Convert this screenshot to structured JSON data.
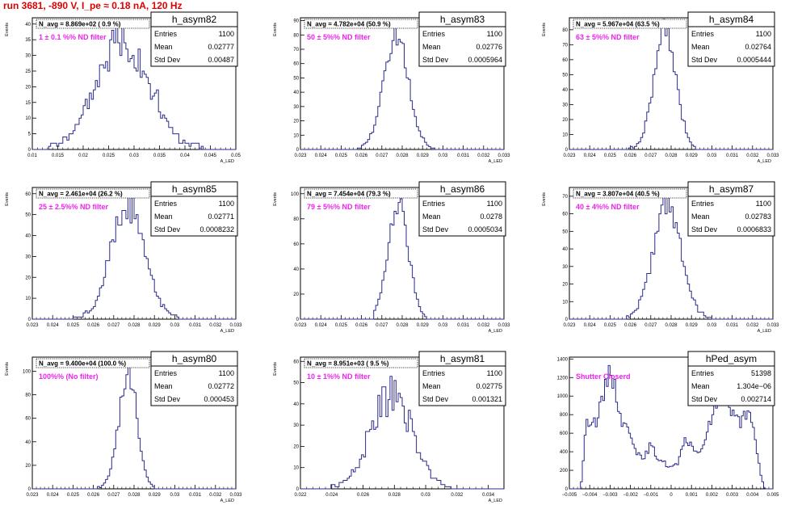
{
  "title": "run 3681,  -890 V, I_pe ≈ 0.18 nA, 120 Hz",
  "colors": {
    "hist": "#2b2b8c",
    "title": "#e00000",
    "filter": "#ee22ee"
  },
  "chart_data": [
    {
      "type": "histogram",
      "name": "h_asym82",
      "ylabel": "Events",
      "xlabel": "A_LED",
      "navg": "N_avg = 8.869e+02 ( 0.9 %)",
      "filter": "1 ± 0.1 %% ND filter",
      "entries": "1100",
      "mean": "0.02777",
      "std_dev": "0.00487",
      "xlim": [
        0.01,
        0.05
      ],
      "ylim": [
        0,
        42
      ],
      "xticks": [
        0.01,
        0.015,
        0.02,
        0.025,
        0.03,
        0.035,
        0.04,
        0.045,
        0.05
      ],
      "xtick_labels": [
        "0.01",
        "0.015",
        "0.02",
        "0.025",
        "0.03",
        "0.035",
        "0.04",
        "0.045",
        "0.05"
      ],
      "yticks": [
        0,
        5,
        10,
        15,
        20,
        25,
        30,
        35,
        40
      ],
      "ytick_labels": [
        "0",
        "5",
        "10",
        "15",
        "20",
        "25",
        "30",
        "35",
        "40"
      ],
      "bins": {
        "lo": 0.0127,
        "hi": 0.0444,
        "peak": 0.0278,
        "sigma": 0.005,
        "amp": 36,
        "noise": 0.25
      }
    },
    {
      "type": "histogram",
      "name": "h_asym83",
      "ylabel": "Events",
      "xlabel": "A_LED",
      "navg": "N_avg = 4.782e+04 (50.9 %)",
      "filter": "50 ± 5%% ND filter",
      "entries": "1100",
      "mean": "0.02776",
      "std_dev": "0.0005964",
      "xlim": [
        0.023,
        0.033
      ],
      "ylim": [
        0,
        92
      ],
      "xticks": [
        0.023,
        0.024,
        0.025,
        0.026,
        0.027,
        0.028,
        0.029,
        0.03,
        0.031,
        0.032,
        0.033
      ],
      "xtick_labels": [
        "0.023",
        "0.024",
        "0.025",
        "0.026",
        "0.027",
        "0.028",
        "0.029",
        "0.03",
        "0.031",
        "0.032",
        "0.033"
      ],
      "yticks": [
        0,
        10,
        20,
        30,
        40,
        50,
        60,
        70,
        80,
        90
      ],
      "ytick_labels": [
        "0",
        "10",
        "20",
        "30",
        "40",
        "50",
        "60",
        "70",
        "80",
        "90"
      ],
      "bins": {
        "lo": 0.0258,
        "hi": 0.0296,
        "peak": 0.0277,
        "sigma": 0.0006,
        "amp": 80,
        "noise": 0.12
      }
    },
    {
      "type": "histogram",
      "name": "h_asym84",
      "ylabel": "Events",
      "xlabel": "A_LED",
      "navg": "N_avg = 5.967e+04 (63.5 %)",
      "filter": "63 ± 5%% ND filter",
      "entries": "1100",
      "mean": "0.02764",
      "std_dev": "0.0005444",
      "xlim": [
        0.023,
        0.033
      ],
      "ylim": [
        0,
        88
      ],
      "xticks": [
        0.023,
        0.024,
        0.025,
        0.026,
        0.027,
        0.028,
        0.029,
        0.03,
        0.031,
        0.032,
        0.033
      ],
      "xtick_labels": [
        "0.023",
        "0.024",
        "0.025",
        "0.026",
        "0.027",
        "0.028",
        "0.029",
        "0.03",
        "0.031",
        "0.032",
        "0.033"
      ],
      "yticks": [
        0,
        10,
        20,
        30,
        40,
        50,
        60,
        70,
        80
      ],
      "ytick_labels": [
        "0",
        "10",
        "20",
        "30",
        "40",
        "50",
        "60",
        "70",
        "80"
      ],
      "bins": {
        "lo": 0.0258,
        "hi": 0.0292,
        "peak": 0.0277,
        "sigma": 0.00054,
        "amp": 78,
        "noise": 0.12
      }
    },
    {
      "type": "histogram",
      "name": "h_asym85",
      "ylabel": "Events",
      "xlabel": "A_LED",
      "navg": "N_avg = 2.461e+04 (26.2 %)",
      "filter": "25 ± 2.5%% ND filter",
      "entries": "1100",
      "mean": "0.02771",
      "std_dev": "0.0008232",
      "xlim": [
        0.023,
        0.033
      ],
      "ylim": [
        0,
        63
      ],
      "xticks": [
        0.023,
        0.024,
        0.025,
        0.026,
        0.027,
        0.028,
        0.029,
        0.03,
        0.031,
        0.032,
        0.033
      ],
      "xtick_labels": [
        "0.023",
        "0.024",
        "0.025",
        "0.026",
        "0.027",
        "0.028",
        "0.029",
        "0.03",
        "0.031",
        "0.032",
        "0.033"
      ],
      "yticks": [
        0,
        10,
        20,
        30,
        40,
        50,
        60
      ],
      "ytick_labels": [
        "0",
        "10",
        "20",
        "30",
        "40",
        "50",
        "60"
      ],
      "bins": {
        "lo": 0.025,
        "hi": 0.0302,
        "peak": 0.0277,
        "sigma": 0.00082,
        "amp": 54,
        "noise": 0.14
      }
    },
    {
      "type": "histogram",
      "name": "h_asym86",
      "ylabel": "Events",
      "xlabel": "A_LED",
      "navg": "N_avg = 7.454e+04 (79.3 %)",
      "filter": "79 ± 5%% ND filter",
      "entries": "1100",
      "mean": "0.0278",
      "std_dev": "0.0005034",
      "xlim": [
        0.023,
        0.033
      ],
      "ylim": [
        0,
        105
      ],
      "xticks": [
        0.023,
        0.024,
        0.025,
        0.026,
        0.027,
        0.028,
        0.029,
        0.03,
        0.031,
        0.032,
        0.033
      ],
      "xtick_labels": [
        "0.023",
        "0.024",
        "0.025",
        "0.026",
        "0.027",
        "0.028",
        "0.029",
        "0.03",
        "0.031",
        "0.032",
        "0.033"
      ],
      "yticks": [
        0,
        20,
        40,
        60,
        80,
        100
      ],
      "ytick_labels": [
        "0",
        "20",
        "40",
        "60",
        "80",
        "100"
      ],
      "bins": {
        "lo": 0.0266,
        "hi": 0.0292,
        "peak": 0.0278,
        "sigma": 0.0005,
        "amp": 90,
        "noise": 0.12
      }
    },
    {
      "type": "histogram",
      "name": "h_asym87",
      "ylabel": "Events",
      "xlabel": "A_LED",
      "navg": "N_avg = 3.807e+04 (40.5 %)",
      "filter": "40 ± 4%% ND filter",
      "entries": "1100",
      "mean": "0.02783",
      "std_dev": "0.0006833",
      "xlim": [
        0.023,
        0.033
      ],
      "ylim": [
        0,
        75
      ],
      "xticks": [
        0.023,
        0.024,
        0.025,
        0.026,
        0.027,
        0.028,
        0.029,
        0.03,
        0.031,
        0.032,
        0.033
      ],
      "xtick_labels": [
        "0.023",
        "0.024",
        "0.025",
        "0.026",
        "0.027",
        "0.028",
        "0.029",
        "0.03",
        "0.031",
        "0.032",
        "0.033"
      ],
      "yticks": [
        0,
        10,
        20,
        30,
        40,
        50,
        60,
        70
      ],
      "ytick_labels": [
        "0",
        "10",
        "20",
        "30",
        "40",
        "50",
        "60",
        "70"
      ],
      "bins": {
        "lo": 0.0258,
        "hi": 0.03,
        "peak": 0.0278,
        "sigma": 0.00068,
        "amp": 64,
        "noise": 0.12
      }
    },
    {
      "type": "histogram",
      "name": "h_asym80",
      "ylabel": "Events",
      "xlabel": "A_LED",
      "navg": "N_avg = 9.400e+04 (100.0 %)",
      "filter": "100%% (No filter)",
      "entries": "1100",
      "mean": "0.02772",
      "std_dev": "0.000453",
      "xlim": [
        0.023,
        0.033
      ],
      "ylim": [
        0,
        112
      ],
      "xticks": [
        0.023,
        0.024,
        0.025,
        0.026,
        0.027,
        0.028,
        0.029,
        0.03,
        0.031,
        0.032,
        0.033
      ],
      "xtick_labels": [
        "0.023",
        "0.024",
        "0.025",
        "0.026",
        "0.027",
        "0.028",
        "0.029",
        "0.03",
        "0.031",
        "0.032",
        "0.033"
      ],
      "yticks": [
        0,
        20,
        40,
        60,
        80,
        100
      ],
      "ytick_labels": [
        "0",
        "20",
        "40",
        "60",
        "80",
        "100"
      ],
      "bins": {
        "lo": 0.0262,
        "hi": 0.029,
        "peak": 0.0277,
        "sigma": 0.00045,
        "amp": 98,
        "noise": 0.12
      }
    },
    {
      "type": "histogram",
      "name": "h_asym81",
      "ylabel": "Events",
      "xlabel": "A_LED",
      "navg": "N_avg = 8.951e+03 ( 9.5 %)",
      "filter": "10 ± 1%% ND filter",
      "entries": "1100",
      "mean": "0.02775",
      "std_dev": "0.001321",
      "xlim": [
        0.022,
        0.035
      ],
      "ylim": [
        0,
        62
      ],
      "xticks": [
        0.022,
        0.024,
        0.026,
        0.028,
        0.03,
        0.032,
        0.034
      ],
      "xtick_labels": [
        "0.022",
        "0.024",
        "0.026",
        "0.028",
        "0.03",
        "0.032",
        "0.034"
      ],
      "yticks": [
        0,
        10,
        20,
        30,
        40,
        50,
        60
      ],
      "ytick_labels": [
        "0",
        "10",
        "20",
        "30",
        "40",
        "50",
        "60"
      ],
      "bins": {
        "lo": 0.0238,
        "hi": 0.0318,
        "peak": 0.0278,
        "sigma": 0.0013,
        "amp": 44,
        "noise": 0.22
      }
    },
    {
      "type": "histogram",
      "name": "hPed_asym",
      "ylabel": "",
      "xlabel": "",
      "navg": "",
      "filter": "Shutter Closerd",
      "entries": "51398",
      "mean": "1.304e−06",
      "std_dev": "0.002714",
      "xlim": [
        -0.005,
        0.005
      ],
      "ylim": [
        0,
        1420
      ],
      "xticks": [
        -0.005,
        -0.004,
        -0.003,
        -0.002,
        -0.001,
        0,
        0.001,
        0.002,
        0.003,
        0.004,
        0.005
      ],
      "xtick_labels": [
        "−0.005",
        "−0.004",
        "−0.003",
        "−0.002",
        "−0.001",
        "0",
        "0.001",
        "0.002",
        "0.003",
        "0.004",
        "0.005"
      ],
      "yticks": [
        0,
        200,
        400,
        600,
        800,
        1000,
        1200,
        1400
      ],
      "ytick_labels": [
        "0",
        "200",
        "400",
        "600",
        "800",
        "1000",
        "1200",
        "1400"
      ],
      "curve": [
        [
          -0.0049,
          0
        ],
        [
          -0.0045,
          0
        ],
        [
          -0.0044,
          80
        ],
        [
          -0.0042,
          660
        ],
        [
          -0.004,
          760
        ],
        [
          -0.0037,
          720
        ],
        [
          -0.0033,
          1010
        ],
        [
          -0.003,
          1340
        ],
        [
          -0.0028,
          1120
        ],
        [
          -0.0024,
          710
        ],
        [
          -0.002,
          620
        ],
        [
          -0.0017,
          410
        ],
        [
          -0.0014,
          300
        ],
        [
          -0.001,
          480
        ],
        [
          -0.0007,
          340
        ],
        [
          -0.0004,
          300
        ],
        [
          -0.0001,
          230
        ],
        [
          0.0003,
          260
        ],
        [
          0.0007,
          520
        ],
        [
          0.001,
          480
        ],
        [
          0.0014,
          360
        ],
        [
          0.0018,
          640
        ],
        [
          0.0022,
          890
        ],
        [
          0.0026,
          1060
        ],
        [
          0.003,
          810
        ],
        [
          0.0034,
          720
        ],
        [
          0.0038,
          820
        ],
        [
          0.004,
          680
        ],
        [
          0.0042,
          420
        ],
        [
          0.0044,
          160
        ],
        [
          0.0046,
          0
        ],
        [
          0.0049,
          0
        ]
      ]
    }
  ]
}
